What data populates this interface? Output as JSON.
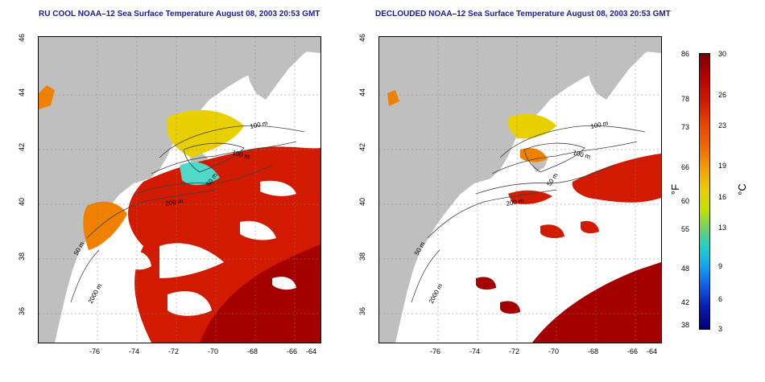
{
  "titles": {
    "left": "RU COOL NOAA–12 Sea Surface Temperature August 08, 2003 20:53 GMT",
    "right": "DECLOUDED NOAA–12 Sea Surface Temperature August 08, 2003 20:53 GMT"
  },
  "x_ticks": [
    "-76",
    "-74",
    "-72",
    "-70",
    "-68",
    "-66",
    "-64"
  ],
  "y_ticks": [
    "46",
    "44",
    "42",
    "40",
    "38",
    "36"
  ],
  "contour_labels": {
    "left": [
      "100 m",
      "100 m",
      "50 m",
      "200 m",
      "50 m",
      "2000 m"
    ],
    "right": [
      "100 m",
      "100 m",
      "50 m",
      "200 m",
      "50 m",
      "2000 m"
    ]
  },
  "colorbar": {
    "fahrenheit": [
      "86",
      "78",
      "73",
      "66",
      "60",
      "55",
      "48",
      "42",
      "38"
    ],
    "celsius": [
      "30",
      "26",
      "23",
      "19",
      "16",
      "13",
      "9",
      "6",
      "3"
    ],
    "unit_f": "°F",
    "unit_c": "°C"
  },
  "colors": {
    "land": "#bfbfbf",
    "title": "#1a1a9a",
    "warm": "#c81400",
    "hot": "#a00000",
    "contour": "#404040"
  }
}
